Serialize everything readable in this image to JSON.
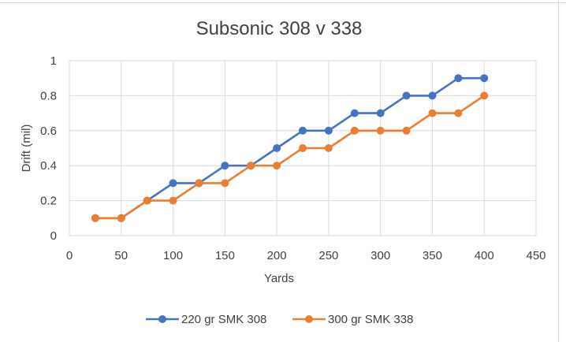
{
  "chart_data": {
    "type": "line",
    "title": "Subsonic 308 v 338",
    "xlabel": "Yards",
    "ylabel": "Drift (mil)",
    "xlim": [
      0,
      450
    ],
    "ylim": [
      0,
      1
    ],
    "x_ticks": [
      0,
      50,
      100,
      150,
      200,
      250,
      300,
      350,
      400,
      450
    ],
    "y_ticks": [
      0,
      0.2,
      0.4,
      0.6,
      0.8,
      1
    ],
    "x_tick_labels": [
      "0",
      "50",
      "100",
      "150",
      "200",
      "250",
      "300",
      "350",
      "400",
      "450"
    ],
    "y_tick_labels": [
      "0",
      "0.2",
      "0.4",
      "0.6",
      "0.8",
      "1"
    ],
    "grid": "both",
    "legend_position": "bottom",
    "x": [
      25,
      50,
      75,
      100,
      125,
      150,
      175,
      200,
      225,
      250,
      275,
      300,
      325,
      350,
      375,
      400
    ],
    "series": [
      {
        "name": "220 gr SMK 308",
        "color": "#4472c4",
        "values": [
          0.1,
          0.1,
          0.2,
          0.3,
          0.3,
          0.4,
          0.4,
          0.5,
          0.6,
          0.6,
          0.7,
          0.7,
          0.8,
          0.8,
          0.9,
          0.9
        ]
      },
      {
        "name": "300 gr SMK 338",
        "color": "#ed7d31",
        "values": [
          0.1,
          0.1,
          0.2,
          0.2,
          0.3,
          0.3,
          0.4,
          0.4,
          0.5,
          0.5,
          0.6,
          0.6,
          0.6,
          0.7,
          0.7,
          0.8
        ]
      }
    ],
    "gridline_color": "#d9d9d9"
  }
}
